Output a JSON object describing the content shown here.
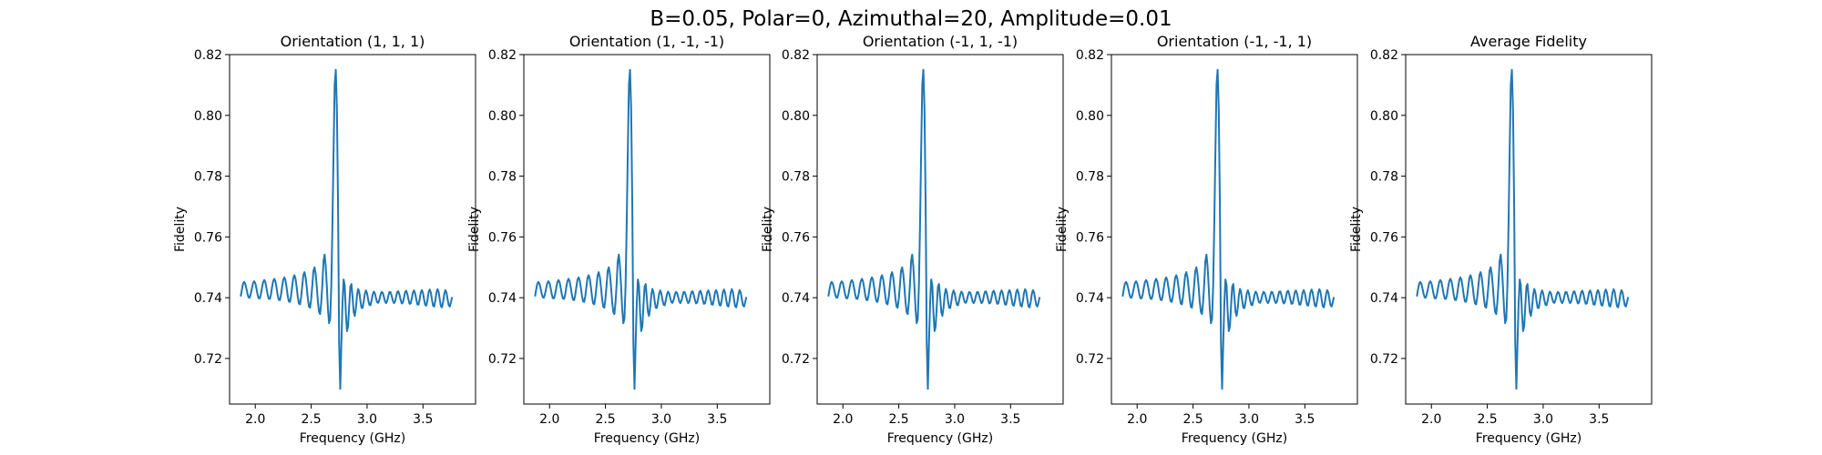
{
  "suptitle": "B=0.05, Polar=0, Azimuthal=20, Amplitude=0.01",
  "series_color": "#1f77b4",
  "shared_x": [
    1.87,
    1.88,
    1.89,
    1.9,
    1.91,
    1.92,
    1.93,
    1.94,
    1.95,
    1.96,
    1.97,
    1.98,
    1.99,
    2.0,
    2.01,
    2.02,
    2.03,
    2.04,
    2.05,
    2.06,
    2.07,
    2.08,
    2.09,
    2.1,
    2.11,
    2.12,
    2.13,
    2.14,
    2.15,
    2.16,
    2.17,
    2.18,
    2.19,
    2.2,
    2.21,
    2.22,
    2.23,
    2.24,
    2.25,
    2.26,
    2.27,
    2.28,
    2.29,
    2.3,
    2.31,
    2.32,
    2.33,
    2.34,
    2.35,
    2.36,
    2.37,
    2.38,
    2.39,
    2.4,
    2.41,
    2.42,
    2.43,
    2.44,
    2.45,
    2.46,
    2.47,
    2.48,
    2.49,
    2.5,
    2.51,
    2.52,
    2.53,
    2.54,
    2.55,
    2.56,
    2.57,
    2.58,
    2.59,
    2.6,
    2.61,
    2.62,
    2.63,
    2.64,
    2.65,
    2.66,
    2.67,
    2.68,
    2.69,
    2.7,
    2.71,
    2.72,
    2.73,
    2.74,
    2.75,
    2.76,
    2.77,
    2.78,
    2.79,
    2.8,
    2.81,
    2.82,
    2.83,
    2.84,
    2.85,
    2.86,
    2.87,
    2.88,
    2.89,
    2.9,
    2.91,
    2.92,
    2.93,
    2.94,
    2.95,
    2.96,
    2.97,
    2.98,
    2.99,
    3.0,
    3.01,
    3.02,
    3.03,
    3.04,
    3.05,
    3.06,
    3.07,
    3.08,
    3.09,
    3.1,
    3.11,
    3.12,
    3.13,
    3.14,
    3.15,
    3.16,
    3.17,
    3.18,
    3.19,
    3.2,
    3.21,
    3.22,
    3.23,
    3.24,
    3.25,
    3.26,
    3.27,
    3.28,
    3.29,
    3.3,
    3.31,
    3.32,
    3.33,
    3.34,
    3.35,
    3.36,
    3.37,
    3.38,
    3.39,
    3.4,
    3.41,
    3.42,
    3.43,
    3.44,
    3.45,
    3.46,
    3.47,
    3.48,
    3.49,
    3.5,
    3.51,
    3.52,
    3.53,
    3.54,
    3.55,
    3.56,
    3.57,
    3.58,
    3.59,
    3.6,
    3.61,
    3.62,
    3.63,
    3.64,
    3.65,
    3.66,
    3.67,
    3.68,
    3.69,
    3.7,
    3.71,
    3.72,
    3.73,
    3.74,
    3.75,
    3.76,
    3.77,
    3.78,
    3.79,
    3.8,
    3.81,
    3.82,
    3.83,
    3.84,
    3.85,
    3.86,
    3.87
  ],
  "shared_y": [
    0.7404,
    0.7426,
    0.7445,
    0.7452,
    0.7446,
    0.7431,
    0.7413,
    0.7401,
    0.74,
    0.7413,
    0.7431,
    0.7448,
    0.7454,
    0.7448,
    0.7431,
    0.7411,
    0.7398,
    0.7398,
    0.7411,
    0.7433,
    0.7451,
    0.7458,
    0.7451,
    0.7432,
    0.7411,
    0.7397,
    0.7396,
    0.741,
    0.7435,
    0.7454,
    0.7462,
    0.7454,
    0.7433,
    0.7409,
    0.7393,
    0.7392,
    0.7409,
    0.7436,
    0.7459,
    0.7467,
    0.7457,
    0.7434,
    0.7406,
    0.7388,
    0.7386,
    0.7406,
    0.7437,
    0.7465,
    0.7474,
    0.7462,
    0.7435,
    0.7403,
    0.7381,
    0.7378,
    0.7402,
    0.7438,
    0.7474,
    0.7484,
    0.7468,
    0.7435,
    0.7397,
    0.7371,
    0.7367,
    0.7396,
    0.744,
    0.7488,
    0.75,
    0.7478,
    0.7436,
    0.7387,
    0.7353,
    0.7346,
    0.7385,
    0.7444,
    0.752,
    0.7542,
    0.7503,
    0.7437,
    0.7362,
    0.7316,
    0.733,
    0.744,
    0.764,
    0.788,
    0.81,
    0.815,
    0.802,
    0.771,
    0.725,
    0.71,
    0.725,
    0.738,
    0.746,
    0.744,
    0.735,
    0.729,
    0.7306,
    0.7373,
    0.7436,
    0.7445,
    0.7401,
    0.7353,
    0.734,
    0.7366,
    0.7408,
    0.7429,
    0.7418,
    0.739,
    0.7367,
    0.7366,
    0.7388,
    0.7413,
    0.7424,
    0.7414,
    0.7393,
    0.7377,
    0.7375,
    0.7391,
    0.741,
    0.742,
    0.7414,
    0.7398,
    0.7385,
    0.7383,
    0.7393,
    0.7409,
    0.7419,
    0.7416,
    0.7403,
    0.7388,
    0.7382,
    0.739,
    0.7406,
    0.7419,
    0.7418,
    0.7406,
    0.7391,
    0.7382,
    0.7387,
    0.7404,
    0.7419,
    0.7421,
    0.7409,
    0.7393,
    0.7381,
    0.7384,
    0.74,
    0.7418,
    0.7423,
    0.7412,
    0.7394,
    0.738,
    0.7381,
    0.7397,
    0.7417,
    0.7424,
    0.7414,
    0.7395,
    0.7378,
    0.7377,
    0.7394,
    0.7417,
    0.7425,
    0.7415,
    0.7394,
    0.7376,
    0.7374,
    0.7392,
    0.7417,
    0.7427,
    0.7417,
    0.7394,
    0.7374,
    0.7371,
    0.7389,
    0.7416,
    0.7428,
    0.7419,
    0.7394,
    0.7372,
    0.7368,
    0.7386,
    0.7412,
    0.7425,
    0.7417,
    0.7395,
    0.7375,
    0.7371,
    0.7385,
    0.7402
  ],
  "chart_data": [
    {
      "type": "line",
      "title": "Orientation (1, 1, 1)",
      "xlabel": "Frequency (GHz)",
      "ylabel": "Fidelity",
      "xlim": [
        1.77,
        3.97
      ],
      "ylim": [
        0.705,
        0.82
      ],
      "xticks": [
        "2.0",
        "2.5",
        "3.0",
        "3.5"
      ],
      "yticks": [
        "0.72",
        "0.74",
        "0.76",
        "0.78",
        "0.80",
        "0.82"
      ],
      "series": [
        {
          "x": "$shared_x",
          "y": "$shared_y"
        }
      ]
    },
    {
      "type": "line",
      "title": "Orientation (1, -1, -1)",
      "xlabel": "Frequency (GHz)",
      "ylabel": "Fidelity",
      "xlim": [
        1.77,
        3.97
      ],
      "ylim": [
        0.705,
        0.82
      ],
      "xticks": [
        "2.0",
        "2.5",
        "3.0",
        "3.5"
      ],
      "yticks": [
        "0.72",
        "0.74",
        "0.76",
        "0.78",
        "0.80",
        "0.82"
      ],
      "series": [
        {
          "x": "$shared_x",
          "y": "$shared_y"
        }
      ]
    },
    {
      "type": "line",
      "title": "Orientation (-1, 1, -1)",
      "xlabel": "Frequency (GHz)",
      "ylabel": "Fidelity",
      "xlim": [
        1.77,
        3.97
      ],
      "ylim": [
        0.705,
        0.82
      ],
      "xticks": [
        "2.0",
        "2.5",
        "3.0",
        "3.5"
      ],
      "yticks": [
        "0.72",
        "0.74",
        "0.76",
        "0.78",
        "0.80",
        "0.82"
      ],
      "series": [
        {
          "x": "$shared_x",
          "y": "$shared_y"
        }
      ]
    },
    {
      "type": "line",
      "title": "Orientation (-1, -1, 1)",
      "xlabel": "Frequency (GHz)",
      "ylabel": "Fidelity",
      "xlim": [
        1.77,
        3.97
      ],
      "ylim": [
        0.705,
        0.82
      ],
      "xticks": [
        "2.0",
        "2.5",
        "3.0",
        "3.5"
      ],
      "yticks": [
        "0.72",
        "0.74",
        "0.76",
        "0.78",
        "0.80",
        "0.82"
      ],
      "series": [
        {
          "x": "$shared_x",
          "y": "$shared_y"
        }
      ]
    },
    {
      "type": "line",
      "title": "Average Fidelity",
      "xlabel": "Frequency (GHz)",
      "ylabel": "Fidelity",
      "xlim": [
        1.77,
        3.97
      ],
      "ylim": [
        0.705,
        0.82
      ],
      "xticks": [
        "2.0",
        "2.5",
        "3.0",
        "3.5"
      ],
      "yticks": [
        "0.72",
        "0.74",
        "0.76",
        "0.78",
        "0.80",
        "0.82"
      ],
      "series": [
        {
          "x": "$shared_x",
          "y": "$shared_y"
        }
      ]
    }
  ]
}
